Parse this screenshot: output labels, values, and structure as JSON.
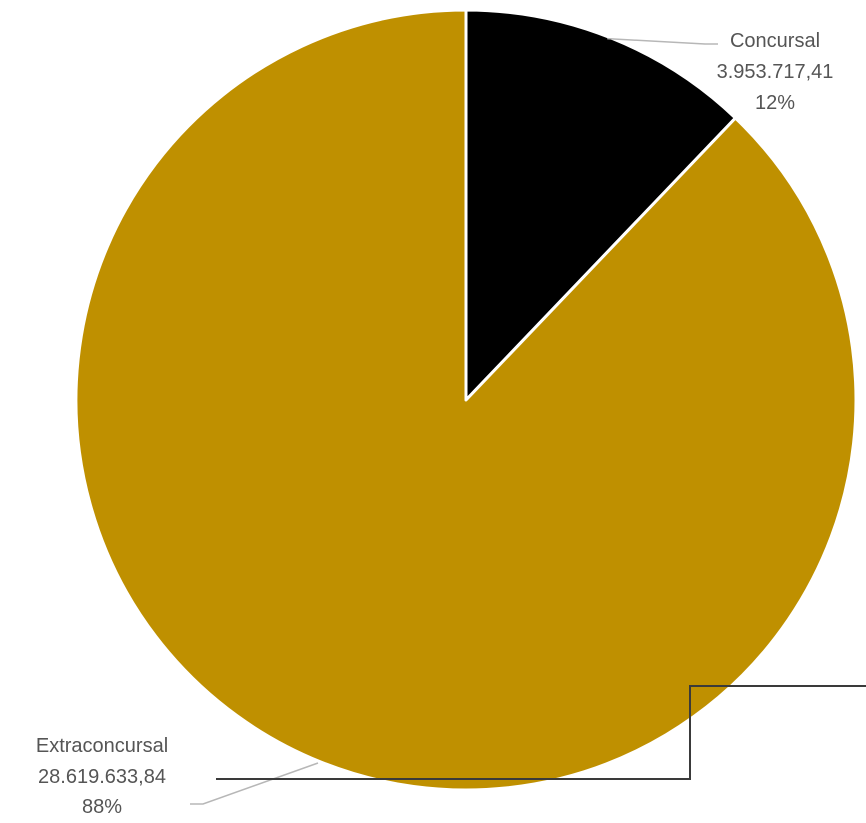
{
  "chart_data": {
    "type": "pie",
    "slices": [
      {
        "name": "Concursal",
        "value": 3953717.41,
        "value_label": "3.953.717,41",
        "percent_label": "12%",
        "color": "#000000"
      },
      {
        "name": "Extraconcursal",
        "value": 28619633.84,
        "value_label": "28.619.633,84",
        "percent_label": "88%",
        "color": "#bf9000"
      }
    ],
    "slice_border_color": "#ffffff",
    "leader_line_color": "#b7b7b7",
    "label_color": "#555555",
    "overlay_line_color": "#3a3a3a",
    "start_angle_deg": 0,
    "direction": "clockwise",
    "legend": "none"
  }
}
